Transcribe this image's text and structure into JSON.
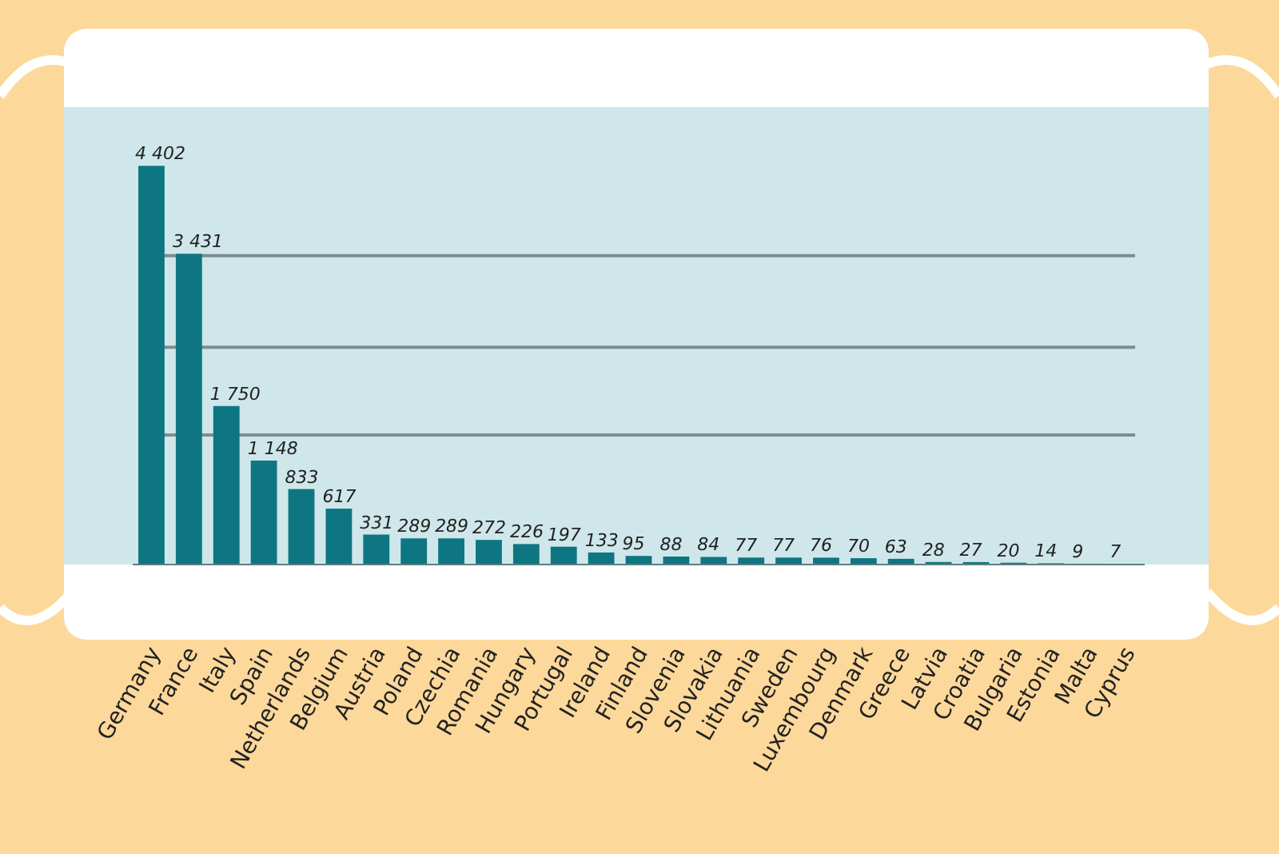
{
  "chart_data": {
    "type": "bar",
    "categories": [
      "Germany",
      "France",
      "Italy",
      "Spain",
      "Netherlands",
      "Belgium",
      "Austria",
      "Poland",
      "Czechia",
      "Romania",
      "Hungary",
      "Portugal",
      "Ireland",
      "Finland",
      "Slovenia",
      "Slovakia",
      "Lithuania",
      "Sweden",
      "Luxembourg",
      "Denmark",
      "Greece",
      "Latvia",
      "Croatia",
      "Bulgaria",
      "Estonia",
      "Malta",
      "Cyprus"
    ],
    "values": [
      4402,
      3431,
      1750,
      1148,
      833,
      617,
      331,
      289,
      289,
      272,
      226,
      197,
      133,
      95,
      88,
      84,
      77,
      77,
      76,
      70,
      63,
      28,
      27,
      20,
      14,
      9,
      7
    ],
    "value_labels": [
      "4 402",
      "3 431",
      "1 750",
      "1 148",
      "833",
      "617",
      "331",
      "289",
      "289",
      "272",
      "226",
      "197",
      "133",
      "95",
      "88",
      "84",
      "77",
      "77",
      "76",
      "70",
      "63",
      "28",
      "27",
      "20",
      "14",
      "9",
      "7"
    ],
    "color": "#0e7682",
    "ylim": [
      0,
      5050
    ],
    "yticks": [
      {
        "value": 1430,
        "label": null
      },
      {
        "value": 2400,
        "label": null
      },
      {
        "value": 3410,
        "label": null
      }
    ],
    "grid": "y",
    "tick_labels": "x"
  }
}
